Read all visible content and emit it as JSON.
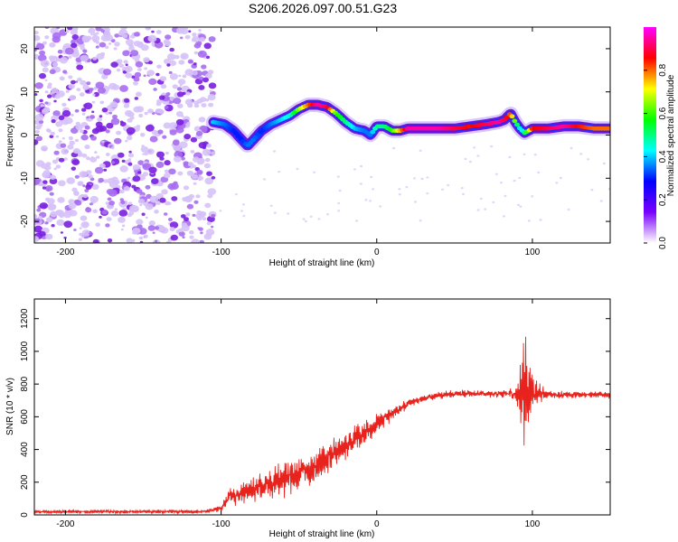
{
  "figure": {
    "title": "S206.2026.097.00.51.G23"
  },
  "chart_data": [
    {
      "type": "heatmap",
      "title": "S206.2026.097.00.51.G23",
      "xlabel": "Height of straight line (km)",
      "ylabel": "Frequency (Hz)",
      "xlim": [
        -220,
        150
      ],
      "ylim": [
        -25,
        25
      ],
      "xticks": [
        -200,
        -100,
        0,
        100
      ],
      "xtick_labels": [
        "-200",
        "-100",
        "0",
        "100"
      ],
      "yticks": [
        20,
        10,
        0,
        -10,
        -20
      ],
      "ytick_labels": [
        "20",
        "10",
        "0",
        "-10",
        "-20"
      ],
      "noise_region_x": [
        -220,
        -105
      ],
      "ridge": {
        "x": [
          -105,
          -98,
          -92,
          -87,
          -83,
          -79,
          -74,
          -68,
          -62,
          -56,
          -50,
          -44,
          -38,
          -32,
          -26,
          -20,
          -14,
          -8,
          -4,
          0,
          5,
          10,
          15,
          20,
          30,
          40,
          50,
          60,
          70,
          78,
          82,
          86,
          89,
          92,
          95,
          100,
          110,
          120,
          130,
          140,
          150
        ],
        "y": [
          3,
          2.5,
          1,
          -1,
          -2.5,
          -1,
          1,
          2.5,
          3.5,
          4.5,
          6,
          7,
          7,
          6.5,
          5,
          3,
          1.5,
          1,
          0,
          2,
          2,
          1,
          1,
          1.5,
          1.5,
          1.5,
          1.5,
          2,
          2.5,
          3,
          3.5,
          5,
          3,
          1.5,
          0.5,
          1.5,
          1.5,
          2,
          2,
          1.5,
          1.5
        ],
        "amplitude": [
          0.4,
          0.35,
          0.3,
          0.3,
          0.35,
          0.35,
          0.3,
          0.35,
          0.4,
          0.45,
          0.65,
          0.8,
          0.95,
          0.9,
          0.6,
          0.5,
          0.4,
          0.35,
          0.35,
          0.5,
          0.5,
          0.6,
          0.75,
          0.95,
          0.95,
          0.95,
          0.9,
          0.85,
          0.9,
          0.95,
          0.9,
          0.8,
          0.6,
          0.4,
          0.5,
          0.85,
          0.9,
          0.95,
          0.85,
          0.8,
          0.8
        ]
      },
      "colorbar": {
        "label": "Normalized spectral amplitude",
        "range": [
          0,
          1
        ],
        "ticks": [
          0.0,
          0.2,
          0.4,
          0.6,
          0.8
        ],
        "tick_labels": [
          "0.0",
          "0.2",
          "0.4",
          "0.6",
          "0.8"
        ],
        "colors": [
          "#ffffff",
          "#7a00ff",
          "#0000ff",
          "#00ffff",
          "#00ff00",
          "#ffff00",
          "#ff0000",
          "#ff00ff"
        ]
      }
    },
    {
      "type": "line",
      "xlabel": "Height of straight line (km)",
      "ylabel": "SNR (10 * v/v)",
      "xlim": [
        -220,
        150
      ],
      "ylim": [
        0,
        1320
      ],
      "xticks": [
        -200,
        -100,
        0,
        100
      ],
      "xtick_labels": [
        "-200",
        "-100",
        "0",
        "100"
      ],
      "yticks": [
        0,
        200,
        400,
        600,
        800,
        1000,
        1200
      ],
      "ytick_labels": [
        "0",
        "200",
        "400",
        "600",
        "800",
        "1000",
        "1200"
      ],
      "line_color": "#e8221c",
      "series": [
        {
          "name": "SNR",
          "x": [
            -220,
            -110,
            -100,
            -95,
            -90,
            -85,
            -80,
            -75,
            -70,
            -65,
            -60,
            -55,
            -50,
            -45,
            -40,
            -35,
            -30,
            -25,
            -20,
            -15,
            -10,
            -5,
            0,
            5,
            10,
            15,
            20,
            25,
            30,
            35,
            40,
            50,
            60,
            70,
            80,
            90,
            95,
            100,
            110,
            120,
            130,
            140,
            150
          ],
          "envelope": [
            20,
            20,
            40,
            110,
            120,
            140,
            160,
            170,
            190,
            200,
            220,
            240,
            260,
            270,
            290,
            320,
            360,
            390,
            420,
            460,
            490,
            520,
            550,
            590,
            620,
            650,
            680,
            700,
            710,
            720,
            730,
            740,
            740,
            740,
            740,
            740,
            740,
            740,
            735,
            735,
            735,
            735,
            735
          ],
          "noise": [
            15,
            15,
            25,
            70,
            90,
            100,
            110,
            120,
            130,
            140,
            150,
            150,
            150,
            150,
            150,
            140,
            130,
            120,
            110,
            110,
            110,
            100,
            90,
            70,
            60,
            50,
            40,
            35,
            30,
            30,
            30,
            30,
            30,
            30,
            30,
            60,
            500,
            150,
            30,
            30,
            30,
            30,
            30
          ]
        }
      ]
    }
  ]
}
